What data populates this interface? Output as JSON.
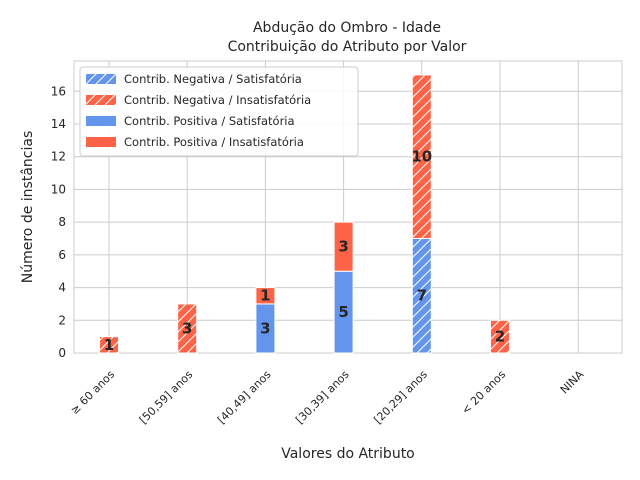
{
  "chart_data": {
    "type": "bar",
    "stacked": true,
    "title": "Abdução do Ombro - Idade",
    "subtitle": "Contribuição do Atributo por Valor",
    "xlabel": "Valores do Atributo",
    "ylabel": "Número de instâncias",
    "ylim": [
      0,
      17.85
    ],
    "yticks": [
      0,
      2,
      4,
      6,
      8,
      10,
      12,
      14,
      16
    ],
    "grid": true,
    "legend_position": "top-left",
    "categories": [
      "≥ 60 anos",
      "[50,59] anos",
      "[40,49] anos",
      "[30,39] anos",
      "[20,29] anos",
      "< 20 anos",
      "NINA"
    ],
    "series": [
      {
        "name": "Contrib. Negativa / Satisfatória",
        "values": [
          0,
          0,
          0,
          0,
          7,
          0,
          0
        ],
        "color": "#6495ED",
        "hatch": true
      },
      {
        "name": "Contrib. Negativa / Insatisfatória",
        "values": [
          1,
          3,
          0,
          0,
          10,
          2,
          0
        ],
        "color": "#FF6347",
        "hatch": true
      },
      {
        "name": "Contrib. Positiva / Satisfatória",
        "values": [
          0,
          0,
          3,
          5,
          0,
          0,
          0
        ],
        "color": "#6495ED",
        "hatch": false
      },
      {
        "name": "Contrib. Positiva / Insatisfatória",
        "values": [
          0,
          0,
          1,
          3,
          0,
          0,
          0
        ],
        "color": "#FF6347",
        "hatch": false
      }
    ]
  }
}
